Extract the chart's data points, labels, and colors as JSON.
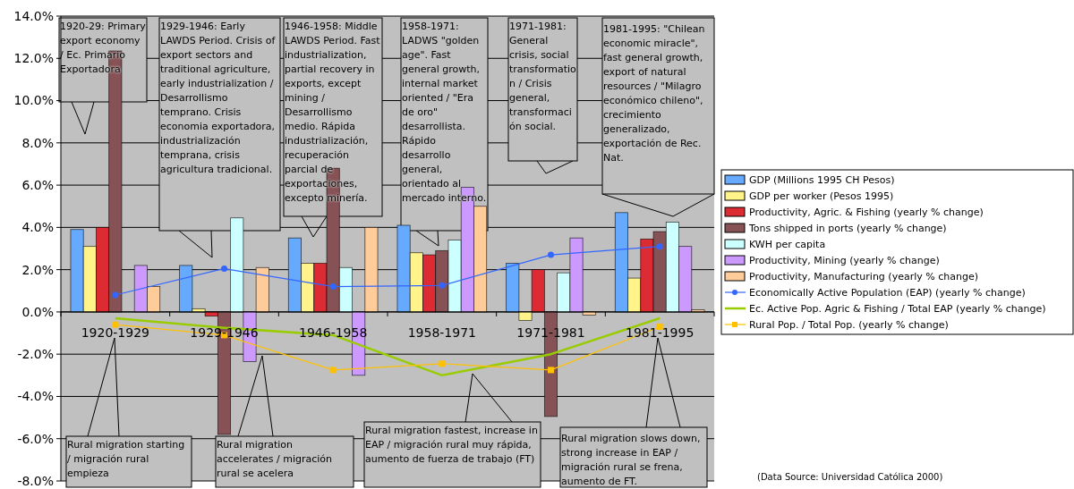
{
  "chart_data": {
    "type": "bar",
    "categories": [
      "1920-1929",
      "1929-1946",
      "1946-1958",
      "1958-1971",
      "1971-1981",
      "1981-1995"
    ],
    "series": [
      {
        "name": "GDP (Millions 1995 CH Pesos)",
        "color": "#66aaff",
        "values": [
          3.9,
          2.2,
          3.5,
          4.1,
          2.3,
          4.7
        ]
      },
      {
        "name": "GDP per worker (Pesos 1995)",
        "color": "#fff38a",
        "values": [
          3.1,
          0.15,
          2.3,
          2.8,
          -0.4,
          1.6
        ]
      },
      {
        "name": "Productivity, Agric. & Fishing (yearly % change)",
        "color": "#dd2b33",
        "values": [
          4.0,
          -0.2,
          2.3,
          2.7,
          2.0,
          3.45
        ]
      },
      {
        "name": "Tons shipped in ports (yearly % change)",
        "color": "#875255",
        "values": [
          12.35,
          -5.8,
          6.8,
          2.9,
          -4.95,
          3.8
        ]
      },
      {
        "name": "KWH per capita",
        "color": "#ccffff",
        "values": [
          null,
          4.45,
          2.1,
          3.4,
          1.85,
          4.25
        ]
      },
      {
        "name": "Productivity, Mining (yearly % change)",
        "color": "#cc99ff",
        "values": [
          2.2,
          -2.35,
          -3.0,
          5.9,
          3.5,
          3.1
        ]
      },
      {
        "name": "Productivity, Manufacturing (yearly % change)",
        "color": "#ffcc99",
        "values": [
          1.2,
          2.1,
          4.0,
          5.0,
          -0.15,
          0.1
        ]
      },
      {
        "name": "Economically Active Population (EAP) (yearly % change)",
        "type": "line",
        "color": "#3366ff",
        "marker": "circle",
        "values": [
          0.8,
          2.05,
          1.2,
          1.25,
          2.7,
          3.1
        ]
      },
      {
        "name": "Ec. Active Pop. Agric & Fishing / Total EAP (yearly % change)",
        "type": "line",
        "color": "#99cc00",
        "marker": "none",
        "values": [
          -0.3,
          -0.75,
          -1.1,
          -3.0,
          -2.0,
          -0.3
        ]
      },
      {
        "name": "Rural Pop. / Total Pop. (yearly % change)",
        "type": "line",
        "color": "#ffc000",
        "marker": "square",
        "values": [
          -0.6,
          -1.1,
          -2.75,
          -2.45,
          -2.75,
          -0.7
        ]
      }
    ],
    "ylim": [
      -8,
      14
    ],
    "yticks": [
      {
        "value": -8,
        "label": "-8.0%"
      },
      {
        "value": -6,
        "label": "-6.0%"
      },
      {
        "value": -4,
        "label": "-4.0%"
      },
      {
        "value": -2,
        "label": "-2.0%"
      },
      {
        "value": 0,
        "label": "0.0%"
      },
      {
        "value": 2,
        "label": "2.0%"
      },
      {
        "value": 4,
        "label": "4.0%"
      },
      {
        "value": 6,
        "label": "6.0%"
      },
      {
        "value": 8,
        "label": "8.0%"
      },
      {
        "value": 10,
        "label": "10.0%"
      },
      {
        "value": 12,
        "label": "12.0%"
      },
      {
        "value": 14,
        "label": "14.0%"
      }
    ],
    "grid": "y",
    "legend": "right",
    "line_style": "solid",
    "annotations": [
      "1920-29: Primary export economy / Ec. Primario Exportadora",
      "1929-1946: Early LAWDS Period. Crisis of export sectors and traditional agriculture, early industrialization / Desarrollismo temprano. Crisis economia exportadora, industrialización temprana, crisis agricultura tradicional.",
      "1946-1958: Middle LAWDS Period. Fast industrialization, partial recovery in exports, except mining  / Desarrollismo medio. Rápida industrialización, recuperación parcial de exportaciones, excepto minería.",
      "1958-1971: LADWS \"golden age\". Fast general growth, internal market oriented / \"Era de oro\" desarrollista. Rápido desarrollo general, orientado al mercado interno.",
      "1971-1981: General crisis, social transformation / Crisis general, transformación social.",
      "1981-1995: \"Chilean economic miracle\", fast general growth, export of natural resources / \"Milagro económico chileno\", crecimiento generalizado, exportación de Rec. Nat.",
      "Rural migration starting / migración rural empieza",
      "Rural migration accelerates / migración rural se acelera",
      "Rural migration fastest, increase in EAP / migración rural muy rápida, aumento de fuerza de trabajo (FT)",
      "Rural migration slows down, strong increase in EAP / migración rural se frena, aumento de FT.",
      "(Data Source: Universidad Católica 2000)"
    ]
  }
}
